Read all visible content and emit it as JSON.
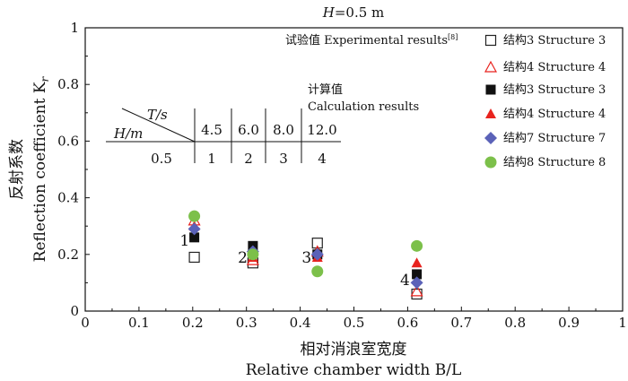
{
  "chart_data": {
    "type": "scatter",
    "title": "H=0.5 m",
    "xlabel_cn": "相对消浪室宽度",
    "xlabel_en": "Relative chamber width B/L",
    "ylabel_cn": "反射系数",
    "ylabel_en": "Reflection coefficient K",
    "ylabel_sub": "r",
    "xlim": [
      0,
      1
    ],
    "ylim": [
      0,
      1
    ],
    "xticks": [
      "0",
      "0.1",
      "0.2",
      "0.3",
      "0.4",
      "0.5",
      "0.6",
      "0.7",
      "0.8",
      "0.9",
      "1"
    ],
    "yticks": [
      "0",
      "0.2",
      "0.4",
      "0.6",
      "0.8",
      "1"
    ],
    "legend_placement": "top-right",
    "legend_title_exp": "试验值 Experimental results",
    "legend_title_exp_ref": "[8]",
    "legend_title_calc": [
      "计算值",
      "Calculation results"
    ],
    "series": [
      {
        "name": "结构3 Structure 3",
        "kind": "experimental",
        "marker": "square-open",
        "color": "#222222",
        "x": [
          0.203,
          0.312,
          0.432,
          0.617
        ],
        "y": [
          0.19,
          0.17,
          0.24,
          0.06
        ]
      },
      {
        "name": "结构4 Structure 4",
        "kind": "experimental",
        "marker": "triangle-open",
        "color": "#e8231e",
        "x": [
          0.203,
          0.312,
          0.432,
          0.617
        ],
        "y": [
          0.32,
          0.18,
          0.21,
          0.07
        ]
      },
      {
        "name": "结构3 Structure 3",
        "kind": "calculated",
        "marker": "square-filled",
        "color": "#111111",
        "x": [
          0.203,
          0.312,
          0.432,
          0.617
        ],
        "y": [
          0.26,
          0.23,
          0.2,
          0.13
        ]
      },
      {
        "name": "结构4 Structure 4",
        "kind": "calculated",
        "marker": "triangle-filled",
        "color": "#e8231e",
        "x": [
          0.203,
          0.312,
          0.432,
          0.617
        ],
        "y": [
          0.3,
          0.19,
          0.19,
          0.17
        ]
      },
      {
        "name": "结构7 Structure 7",
        "kind": "calculated",
        "marker": "diamond-filled",
        "color": "#5b62b8",
        "x": [
          0.203,
          0.312,
          0.432,
          0.617
        ],
        "y": [
          0.29,
          0.21,
          0.2,
          0.1
        ]
      },
      {
        "name": "结构8 Structure 8",
        "kind": "calculated",
        "marker": "circle-filled",
        "color": "#7cc04a",
        "x": [
          0.203,
          0.312,
          0.432,
          0.617
        ],
        "y": [
          0.335,
          0.2,
          0.14,
          0.23
        ]
      }
    ],
    "annotations": [
      {
        "text": "1",
        "x": 0.185,
        "y": 0.25
      },
      {
        "text": "2",
        "x": 0.293,
        "y": 0.19
      },
      {
        "text": "3",
        "x": 0.412,
        "y": 0.19
      },
      {
        "text": "4",
        "x": 0.595,
        "y": 0.11
      }
    ],
    "param_table": {
      "header_col": "T/s",
      "header_row": "H/m",
      "periods": [
        "4.5",
        "6.0",
        "8.0",
        "12.0"
      ],
      "height": "0.5",
      "cases": [
        "1",
        "2",
        "3",
        "4"
      ]
    }
  }
}
